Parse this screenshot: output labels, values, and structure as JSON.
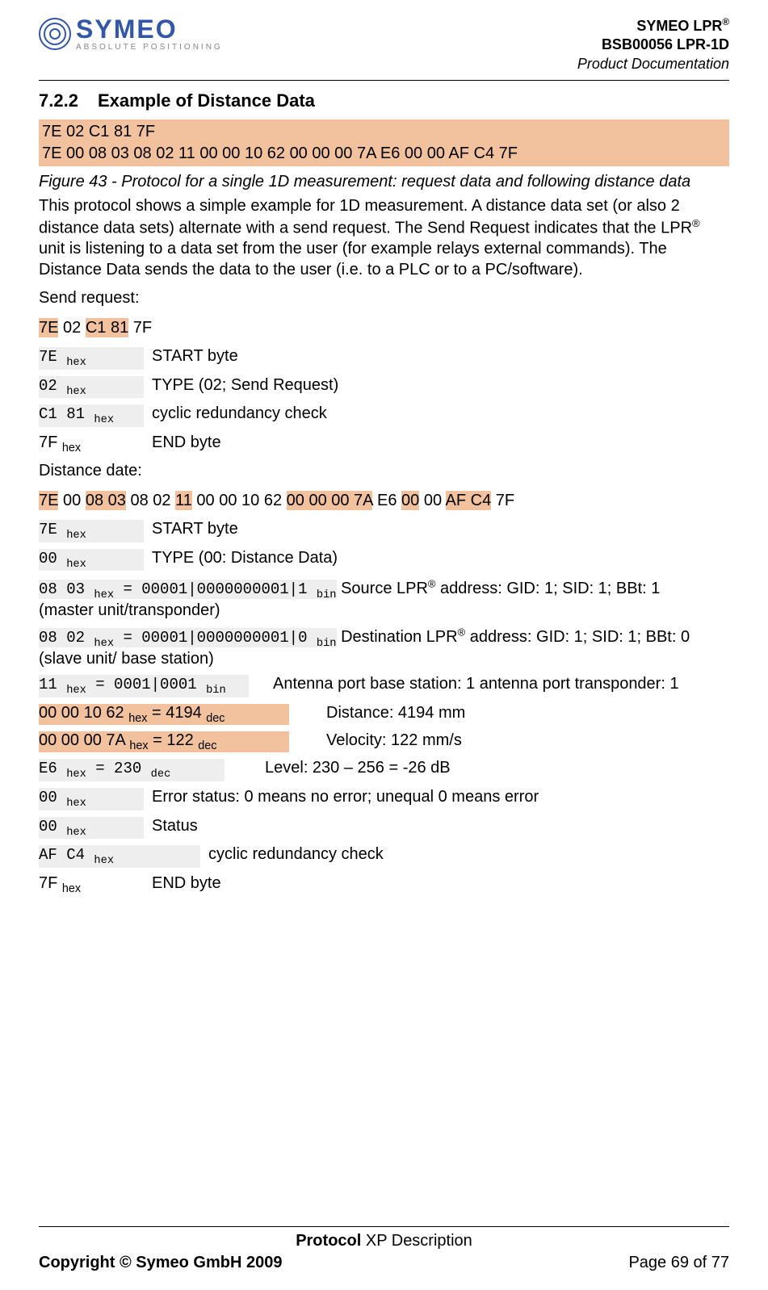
{
  "header": {
    "logo_main": "SYMEO",
    "logo_sub": "ABSOLUTE POSITIONING",
    "line1_pre": "SYMEO LPR",
    "reg": "®",
    "line2": "BSB00056 LPR-1D",
    "line3": "Product Documentation"
  },
  "section": {
    "num": "7.2.2",
    "title": "Example of Distance Data"
  },
  "hex_header_1": "7E 02 C1 81 7F",
  "hex_header_2": "7E 00 08 03 08 02 11 00 00 10 62 00 00 00 7A E6 00 00 AF C4 7F",
  "caption": "Figure 43 - Protocol for a single 1D measurement: request data and following distance data",
  "para1_a": "This protocol shows a simple example for 1D measurement. A distance data set (or also 2 distance data sets) alternate with a send request. The Send Request indicates that the LPR",
  "para1_b": " unit is listening to a data set from the user (for example relays external commands). The Distance Data sends the data to the user (i.e. to a PLC or to a PC/software).",
  "send_request_label": "Send request:",
  "send_req_segments": [
    "7E",
    " ",
    "02",
    " ",
    "C1 81",
    " ",
    "7F"
  ],
  "send_req_highlight": [
    true,
    false,
    false,
    false,
    true,
    false,
    false
  ],
  "send_defs": [
    {
      "code": "7E ",
      "sub": "hex",
      "desc": "START byte"
    },
    {
      "code": "02 ",
      "sub": "hex",
      "desc": "TYPE (02; Send Request)"
    },
    {
      "code": "C1 81 ",
      "sub": "hex",
      "desc": "cyclic redundancy check"
    },
    {
      "code": "7F ",
      "sub": "hex",
      "desc": "END byte",
      "plain": true
    }
  ],
  "distance_date_label": "Distance date:",
  "dist_segments": [
    "7E",
    " ",
    "00",
    " ",
    "08 03",
    " ",
    "08 02",
    " ",
    "11",
    " ",
    "00 00 10 62",
    " ",
    "00 00 00 7A",
    " ",
    "E6",
    " ",
    "00",
    " ",
    "00",
    " ",
    "AF C4",
    " ",
    "7F"
  ],
  "dist_highlight": [
    true,
    false,
    false,
    false,
    true,
    false,
    false,
    false,
    true,
    false,
    false,
    false,
    true,
    false,
    false,
    false,
    true,
    false,
    false,
    false,
    true,
    false,
    false
  ],
  "dist_defs": {
    "start": {
      "code": "7E ",
      "sub": "hex",
      "desc": "START byte"
    },
    "type": {
      "code": "00 ",
      "sub": "hex",
      "desc": "TYPE (00: Distance Data)"
    },
    "src": {
      "code": "08 03 ",
      "sub": "hex",
      "eq": " = 00001|0000000001|1 ",
      "sub2": "bin",
      "desc_pre": "  Source LPR",
      "desc_post": " address: GID: 1; SID: 1; BBt: 1",
      "note": "(master unit/transponder)"
    },
    "dst": {
      "code": "08 02 ",
      "sub": "hex",
      "eq": " = 00001|0000000001|0 ",
      "sub2": "bin",
      "desc_pre": "  Destination LPR",
      "desc_post": " address: GID: 1; SID: 1; BBt: 0",
      "note": "(slave unit/ base station)"
    },
    "ant": {
      "code": "11 ",
      "sub": "hex",
      "eq": " = 0001|0001 ",
      "sub2": "bin",
      "desc": "Antenna port base station: 1 antenna port transponder: 1"
    },
    "dist": {
      "code": "00 00 10 62 ",
      "sub": "hex",
      "eq": " = 4194 ",
      "sub2": "dec",
      "desc": "Distance: 4194 mm"
    },
    "vel": {
      "code": "00 00 00 7A ",
      "sub": "hex",
      "eq": " = 122 ",
      "sub2": "dec",
      "desc": "Velocity: 122 mm/s"
    },
    "lvl": {
      "code": "E6 ",
      "sub": "hex",
      "eq": " = 230 ",
      "sub2": "dec",
      "desc": "Level: 230 – 256 = -26 dB"
    },
    "err": {
      "code": "00 ",
      "sub": "hex",
      "desc": "Error status: 0 means no error; unequal 0 means error"
    },
    "stat": {
      "code": "00 ",
      "sub": "hex",
      "desc": "Status"
    },
    "crc": {
      "code": "AF C4 ",
      "sub": "hex",
      "desc": "cyclic redundancy check"
    },
    "end": {
      "code": "7F ",
      "sub": "hex",
      "desc": "END byte"
    }
  },
  "footer": {
    "center_bold": "Protocol",
    "center_rest": " XP Description",
    "left": "Copyright © Symeo GmbH 2009",
    "right": "Page 69 of 77"
  }
}
